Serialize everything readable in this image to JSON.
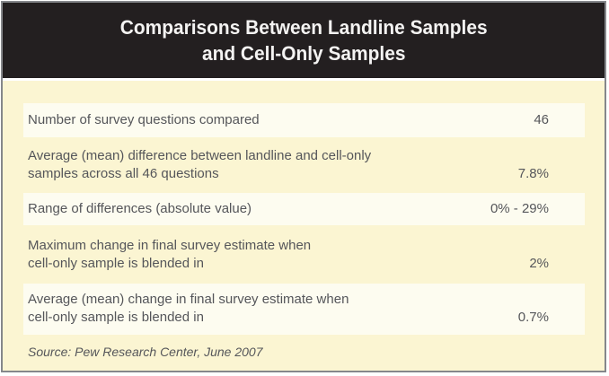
{
  "header": {
    "title_line1": "Comparisons Between Landline Samples",
    "title_line2": "and Cell-Only Samples"
  },
  "chart_data": {
    "type": "table",
    "title": "Comparisons Between Landline Samples and Cell-Only Samples",
    "rows": [
      {
        "label": "Number of survey questions compared",
        "value": "46"
      },
      {
        "label": "Average (mean) difference between landline and cell-only\nsamples across all 46 questions",
        "value": "7.8%"
      },
      {
        "label": "Range of differences (absolute value)",
        "value": "0% - 29%"
      },
      {
        "label": "Maximum change in final survey estimate when\ncell-only sample is blended in",
        "value": "2%"
      },
      {
        "label": "Average (mean) change in final survey estimate when\ncell-only sample is blended in",
        "value": "0.7%"
      }
    ],
    "source": "Source: Pew Research Center, June 2007",
    "layout": {
      "legend": "none",
      "grid": "off",
      "row_shading": "alternating"
    }
  },
  "colors": {
    "header_bg": "#231f20",
    "title_text": "#f4f3f2",
    "body_bg": "#fbf5d2",
    "stripe_bg": "#fdfcf0",
    "text": "#55565a",
    "border": "#85878b"
  }
}
